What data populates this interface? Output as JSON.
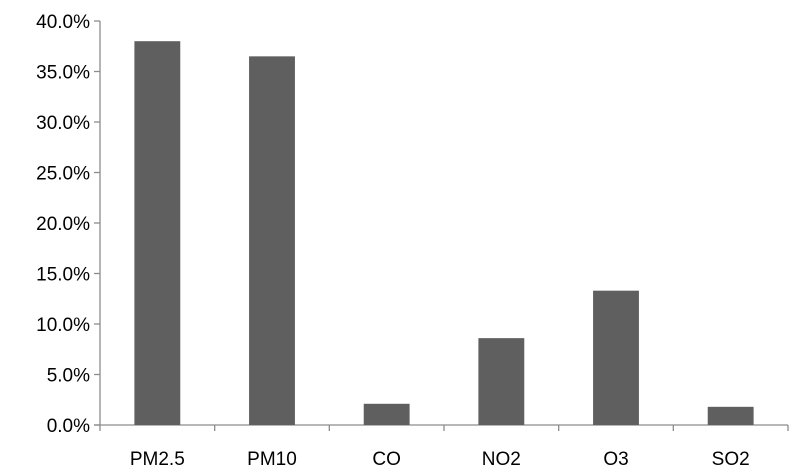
{
  "chart_data": {
    "type": "bar",
    "title": "",
    "xlabel": "",
    "ylabel": "",
    "categories": [
      "PM2.5",
      "PM10",
      "CO",
      "NO2",
      "O3",
      "SO2"
    ],
    "values": [
      38.0,
      36.5,
      2.1,
      8.6,
      13.3,
      1.8
    ],
    "ylim": [
      0,
      40
    ],
    "y_ticks": [
      0,
      5,
      10,
      15,
      20,
      25,
      30,
      35,
      40
    ],
    "y_tick_format": "percent_1dp",
    "grid": false,
    "legend": "none",
    "bar_color": "#5f5f5f",
    "axis_color": "#8c8c8c"
  }
}
